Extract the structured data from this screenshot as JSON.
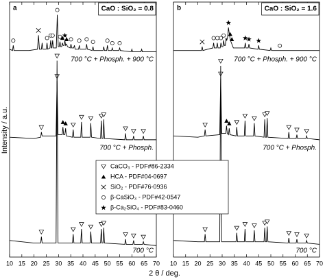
{
  "chart_data": [
    {
      "type": "line",
      "panel": "a",
      "box_label": "CaO : SiO₂ = 0.8",
      "xlim": [
        10,
        70
      ],
      "xticks": [
        10,
        15,
        20,
        25,
        30,
        35,
        40,
        45,
        50,
        55,
        60,
        65,
        70
      ],
      "ylim": [
        0,
        100
      ],
      "xlabel": "2 θ / deg.",
      "ylabel": "Intensity / a.u.",
      "series": [
        {
          "name": "700 °C + Phosph. + 900 °C",
          "color": "#000000",
          "x": [
            10,
            11.2,
            11.5,
            11.8,
            18,
            21.4,
            21.8,
            22.2,
            23.0,
            23.3,
            23.6,
            25.0,
            25.3,
            25.6,
            26.5,
            26.8,
            27.1,
            27.3,
            27.6,
            27.9,
            29.1,
            29.5,
            29.9,
            30.3,
            30.6,
            30.9,
            31.3,
            31.6,
            31.9,
            32.3,
            32.6,
            32.9,
            33.3,
            33.7,
            34.8,
            35.1,
            35.4,
            36.2,
            36.5,
            36.8,
            38.2,
            38.5,
            38.8,
            41.2,
            41.5,
            41.8,
            43.8,
            44.1,
            44.4,
            48.2,
            48.5,
            48.8,
            49.7,
            50.0,
            50.3,
            51.7,
            52.0,
            52.3,
            54.7,
            55.0,
            55.3,
            59.7,
            60.0,
            60.3,
            63.7,
            64.0,
            64.3,
            70
          ],
          "values": [
            81.5,
            81,
            83,
            81,
            81,
            81.5,
            87,
            81.5,
            81.5,
            84,
            81.5,
            81.5,
            84,
            81.5,
            82,
            85,
            82,
            82,
            85,
            82,
            82,
            95,
            82.5,
            82.5,
            84.5,
            82.5,
            82.5,
            84,
            83,
            83,
            85,
            83,
            83.5,
            82.5,
            82,
            83.5,
            82,
            82,
            83,
            81.5,
            81.5,
            83,
            81.5,
            81.5,
            83.5,
            81.5,
            81,
            82.5,
            81,
            81,
            82.5,
            81,
            81,
            83,
            81,
            81,
            82,
            81,
            81,
            82,
            81,
            80.5,
            81.5,
            80.5,
            80.5,
            81.5,
            80.5,
            80.5
          ],
          "markers": [
            {
              "symbol": "circle",
              "x": [
                11.5,
                25.3,
                26.8,
                27.6,
                29.5,
                30.6,
                35.1,
                38.5,
                41.5,
                44.1,
                50.0,
                52.0,
                55.0
              ]
            },
            {
              "symbol": "cross",
              "x": [
                21.8
              ]
            },
            {
              "symbol": "tri-up",
              "x": [
                31.6,
                33.3
              ]
            },
            {
              "symbol": "star",
              "x": [
                32.6
              ]
            }
          ]
        },
        {
          "name": "700 °C + Phosph.",
          "color": "#000000",
          "x": [
            10,
            20,
            22.7,
            23.0,
            23.3,
            29.0,
            29.4,
            29.8,
            31.5,
            31.8,
            32.1,
            32.6,
            32.9,
            33.2,
            35.7,
            36.0,
            36.3,
            39.1,
            39.4,
            39.7,
            42.9,
            43.2,
            43.5,
            47.2,
            47.5,
            47.8,
            48.2,
            48.5,
            48.8,
            57.1,
            57.4,
            57.7,
            60.4,
            60.7,
            61.0,
            64.4,
            64.7,
            65.0,
            70
          ],
          "values": [
            47,
            46.5,
            47,
            49,
            47.5,
            47.5,
            69,
            48,
            48,
            51,
            48,
            48,
            50.5,
            47.5,
            47,
            50,
            47,
            47,
            53,
            47,
            47,
            52.5,
            47,
            46.5,
            53.5,
            46.5,
            46.5,
            54,
            46.5,
            46,
            48.5,
            46,
            46,
            47.5,
            46,
            46,
            47.5,
            46,
            46
          ],
          "markers": [
            {
              "symbol": "tri-down",
              "x": [
                23.0,
                29.4,
                36.0,
                39.4,
                43.2,
                47.5,
                48.5,
                57.4,
                60.7,
                64.7
              ]
            },
            {
              "symbol": "tri-up",
              "x": [
                31.8,
                32.9
              ]
            }
          ]
        },
        {
          "name": "700 °C",
          "color": "#000000",
          "x": [
            10,
            20,
            22.7,
            23.0,
            23.3,
            29.0,
            29.4,
            29.8,
            35.7,
            36.0,
            36.3,
            39.1,
            39.4,
            39.7,
            42.9,
            43.2,
            43.5,
            47.2,
            47.5,
            47.8,
            48.2,
            48.5,
            48.8,
            57.1,
            57.4,
            57.7,
            60.4,
            60.7,
            61.0,
            64.4,
            64.7,
            65.0,
            70
          ],
          "values": [
            6.5,
            5.5,
            5.5,
            8,
            5.5,
            5.5,
            77,
            5.5,
            5.5,
            9,
            5.5,
            5.5,
            11,
            5.5,
            5.5,
            10,
            5.5,
            5.5,
            11,
            5.5,
            5.5,
            11.5,
            5.5,
            5,
            7,
            5,
            5,
            6.5,
            5,
            5,
            6,
            5,
            4.5
          ],
          "markers": [
            {
              "symbol": "tri-down",
              "x": [
                23.0,
                29.4,
                36.0,
                39.4,
                43.2,
                47.5,
                48.5,
                57.4,
                60.7,
                64.7
              ]
            }
          ]
        }
      ]
    },
    {
      "type": "line",
      "panel": "b",
      "box_label": "CaO : SiO₂ = 1.6",
      "xlim": [
        10,
        70
      ],
      "xticks": [
        10,
        15,
        20,
        25,
        30,
        35,
        40,
        45,
        50,
        55,
        60,
        65,
        70
      ],
      "ylim": [
        0,
        100
      ],
      "series": [
        {
          "name": "700 °C + Phosph. + 900 °C",
          "color": "#000000",
          "x": [
            10,
            18,
            21.5,
            21.8,
            22.1,
            24,
            26.2,
            26.5,
            26.8,
            27.7,
            28.0,
            28.3,
            29.2,
            29.5,
            29.8,
            30.3,
            30.6,
            30.9,
            31.3,
            31.6,
            31.9,
            32.2,
            32.6,
            33.0,
            33.4,
            34.0,
            34.6,
            36,
            39.2,
            39.5,
            39.8,
            40.7,
            41.0,
            41.3,
            44.7,
            45.0,
            45.3,
            49.7,
            50.0,
            50.3,
            70
          ],
          "values": [
            81,
            81,
            81,
            82.5,
            81,
            81.5,
            82,
            84,
            82,
            82,
            84,
            82,
            82,
            84,
            82.5,
            82.5,
            85,
            83,
            83,
            86,
            85,
            86,
            90,
            87,
            85,
            83.5,
            82,
            82,
            82,
            84,
            82,
            82,
            83.5,
            82,
            81.5,
            83,
            81.5,
            81,
            82,
            81,
            81
          ],
          "markers": [
            {
              "symbol": "cross",
              "x": [
                21.8
              ]
            },
            {
              "symbol": "circle",
              "x": [
                26.5,
                28.0,
                29.5,
                30.6,
                53.7
              ]
            },
            {
              "symbol": "tri-up",
              "x": [
                33.3,
                34.0
              ]
            },
            {
              "symbol": "star",
              "x": [
                32.6,
                39.5,
                41.0,
                45.0
              ]
            }
          ]
        },
        {
          "name": "700 °C + Phosph.",
          "color": "#000000",
          "x": [
            10,
            20,
            22.7,
            23.0,
            23.3,
            29.0,
            29.4,
            29.8,
            31.5,
            31.8,
            32.1,
            32.6,
            32.9,
            33.2,
            35.7,
            36.0,
            36.3,
            39.1,
            39.4,
            39.7,
            42.9,
            43.2,
            43.5,
            47.2,
            47.5,
            47.8,
            48.2,
            48.5,
            48.8,
            57.1,
            57.4,
            57.7,
            60.4,
            60.7,
            61.0,
            64.4,
            64.7,
            65.0,
            70
          ],
          "values": [
            47.5,
            47,
            47.5,
            50,
            47.5,
            48,
            70,
            48.5,
            48.5,
            51.5,
            48.5,
            48,
            50.5,
            48,
            47.5,
            51,
            47.5,
            47.5,
            53.5,
            47.5,
            47.5,
            52.5,
            47.5,
            47,
            54,
            47,
            47,
            54.5,
            47,
            46.5,
            49,
            46.5,
            46.5,
            48,
            46.5,
            46.5,
            47.5,
            46.5,
            46
          ],
          "markers": [
            {
              "symbol": "tri-down",
              "x": [
                23.0,
                29.4,
                36.0,
                39.4,
                43.2,
                47.5,
                48.5,
                57.4,
                60.7,
                64.7
              ]
            },
            {
              "symbol": "tri-up",
              "x": [
                31.8,
                32.9
              ]
            }
          ]
        },
        {
          "name": "700 °C",
          "color": "#000000",
          "x": [
            10,
            20,
            22.7,
            23.0,
            23.3,
            29.0,
            29.4,
            29.8,
            35.7,
            36.0,
            36.3,
            39.1,
            39.4,
            39.7,
            42.9,
            43.2,
            43.5,
            47.2,
            47.5,
            47.8,
            48.2,
            48.5,
            48.8,
            57.1,
            57.4,
            57.7,
            60.4,
            60.7,
            61.0,
            64.4,
            64.7,
            65.0,
            70
          ],
          "values": [
            6.5,
            6,
            6,
            9,
            6,
            6,
            75,
            6,
            6,
            9.5,
            6,
            6,
            11,
            6,
            6,
            10.5,
            6,
            6,
            11.5,
            6,
            6,
            12,
            6,
            5.5,
            7.5,
            5.5,
            5.5,
            7,
            5.5,
            5.5,
            6.5,
            5.5,
            5
          ],
          "markers": [
            {
              "symbol": "tri-down",
              "x": [
                23.0,
                29.4,
                36.0,
                39.4,
                43.2,
                47.5,
                48.5,
                57.4,
                60.7,
                64.7
              ]
            }
          ]
        }
      ]
    }
  ],
  "legend": [
    {
      "symbol": "tri-down",
      "label": "CaCO₃ - PDF#86-2334"
    },
    {
      "symbol": "tri-up",
      "label": "HCA - PDF#04-0697"
    },
    {
      "symbol": "cross",
      "label": "SiO₂ - PDF#76-0936"
    },
    {
      "symbol": "circle",
      "label": "β-CaSiO₃ - PDF#42-0547"
    },
    {
      "symbol": "star",
      "label": "β-Ca₂SiO₄ - PDF#83-0460"
    }
  ]
}
